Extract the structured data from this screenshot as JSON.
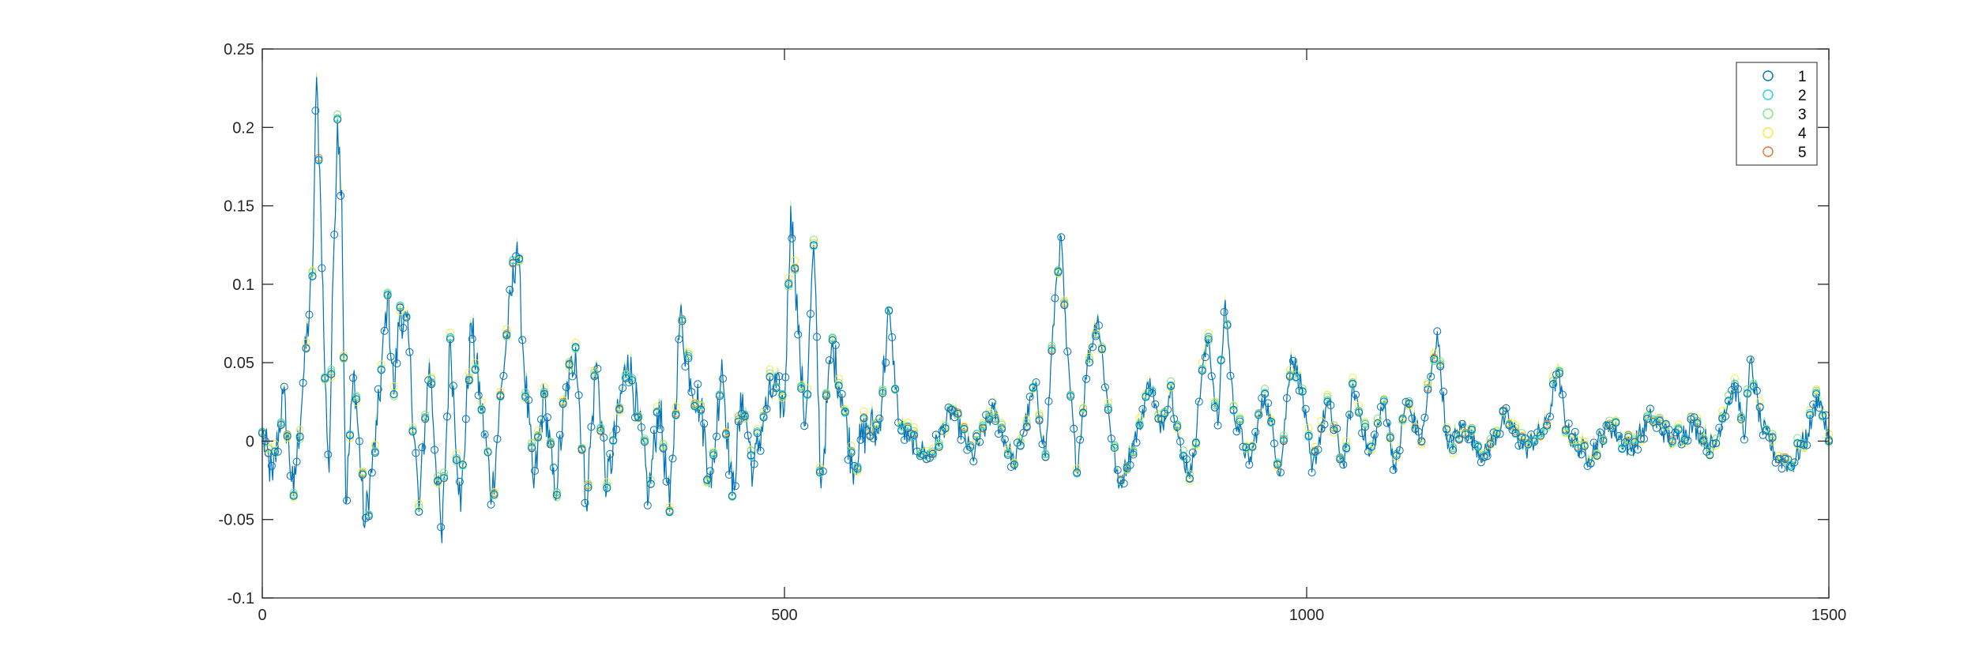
{
  "chart_data": {
    "type": "line",
    "title": "",
    "xlabel": "",
    "ylabel": "",
    "xlim": [
      0,
      1500
    ],
    "ylim": [
      -0.1,
      0.25
    ],
    "x_ticks": [
      0,
      500,
      1000,
      1500
    ],
    "x_tick_labels": [
      "0",
      "500",
      "1000",
      "1500"
    ],
    "y_ticks": [
      -0.1,
      -0.05,
      0,
      0.05,
      0.1,
      0.15,
      0.2,
      0.25
    ],
    "y_tick_labels": [
      "-0.1",
      "-0.05",
      "0",
      "0.05",
      "0.1",
      "0.15",
      "0.2",
      "0.25"
    ],
    "grid": false,
    "legend_position": "top-right",
    "marker": "circle",
    "series": [
      {
        "name": "1",
        "color": "#0072BD"
      },
      {
        "name": "2",
        "color": "#1FD3E0"
      },
      {
        "name": "3",
        "color": "#7CE87A"
      },
      {
        "name": "4",
        "color": "#F2EC3A"
      },
      {
        "name": "5",
        "color": "#E8742D"
      }
    ],
    "peaks": [
      [
        0,
        0.005
      ],
      [
        10,
        -0.025
      ],
      [
        20,
        0.03
      ],
      [
        30,
        -0.035
      ],
      [
        40,
        0.045
      ],
      [
        48,
        0.105
      ],
      [
        52,
        0.232
      ],
      [
        56,
        0.15
      ],
      [
        60,
        0.04
      ],
      [
        64,
        -0.02
      ],
      [
        68,
        0.11
      ],
      [
        72,
        0.205
      ],
      [
        76,
        0.16
      ],
      [
        80,
        -0.04
      ],
      [
        88,
        0.045
      ],
      [
        98,
        -0.055
      ],
      [
        110,
        0.01
      ],
      [
        120,
        0.093
      ],
      [
        126,
        0.03
      ],
      [
        132,
        0.085
      ],
      [
        140,
        0.065
      ],
      [
        150,
        -0.045
      ],
      [
        160,
        0.05
      ],
      [
        172,
        -0.065
      ],
      [
        180,
        0.065
      ],
      [
        190,
        -0.045
      ],
      [
        200,
        0.075
      ],
      [
        210,
        0.02
      ],
      [
        220,
        -0.035
      ],
      [
        230,
        0.04
      ],
      [
        244,
        0.127
      ],
      [
        250,
        0.055
      ],
      [
        260,
        -0.03
      ],
      [
        270,
        0.03
      ],
      [
        280,
        -0.035
      ],
      [
        290,
        0.025
      ],
      [
        300,
        0.06
      ],
      [
        310,
        -0.04
      ],
      [
        320,
        0.05
      ],
      [
        330,
        -0.03
      ],
      [
        350,
        0.055
      ],
      [
        360,
        0.015
      ],
      [
        370,
        -0.035
      ],
      [
        380,
        0.025
      ],
      [
        390,
        -0.045
      ],
      [
        400,
        0.08
      ],
      [
        410,
        0.04
      ],
      [
        420,
        0.02
      ],
      [
        430,
        -0.03
      ],
      [
        440,
        0.052
      ],
      [
        450,
        -0.035
      ],
      [
        460,
        0.03
      ],
      [
        470,
        -0.02
      ],
      [
        480,
        0.015
      ],
      [
        490,
        0.035
      ],
      [
        500,
        0.02
      ],
      [
        506,
        0.15
      ],
      [
        510,
        0.11
      ],
      [
        515,
        0.05
      ],
      [
        520,
        0.01
      ],
      [
        528,
        0.125
      ],
      [
        535,
        -0.03
      ],
      [
        545,
        0.06
      ],
      [
        555,
        0.03
      ],
      [
        565,
        -0.015
      ],
      [
        580,
        0.01
      ],
      [
        590,
        0.005
      ],
      [
        600,
        0.083
      ],
      [
        610,
        0.01
      ],
      [
        620,
        0.0
      ],
      [
        640,
        -0.01
      ],
      [
        660,
        0.02
      ],
      [
        680,
        -0.01
      ],
      [
        700,
        0.02
      ],
      [
        720,
        -0.015
      ],
      [
        740,
        0.035
      ],
      [
        750,
        -0.01
      ],
      [
        760,
        0.1
      ],
      [
        765,
        0.13
      ],
      [
        770,
        0.06
      ],
      [
        780,
        -0.02
      ],
      [
        790,
        0.05
      ],
      [
        800,
        0.08
      ],
      [
        810,
        0.02
      ],
      [
        820,
        -0.03
      ],
      [
        840,
        0.01
      ],
      [
        850,
        0.04
      ],
      [
        860,
        0.005
      ],
      [
        870,
        0.035
      ],
      [
        880,
        -0.01
      ],
      [
        890,
        -0.02
      ],
      [
        900,
        0.045
      ],
      [
        906,
        0.065
      ],
      [
        915,
        0.01
      ],
      [
        922,
        0.09
      ],
      [
        930,
        0.02
      ],
      [
        945,
        -0.015
      ],
      [
        960,
        0.03
      ],
      [
        975,
        -0.02
      ],
      [
        985,
        0.055
      ],
      [
        995,
        0.035
      ],
      [
        1005,
        -0.02
      ],
      [
        1020,
        0.025
      ],
      [
        1035,
        -0.015
      ],
      [
        1045,
        0.035
      ],
      [
        1060,
        -0.01
      ],
      [
        1075,
        0.025
      ],
      [
        1085,
        -0.02
      ],
      [
        1095,
        0.025
      ],
      [
        1110,
        0.0
      ],
      [
        1125,
        0.07
      ],
      [
        1135,
        -0.005
      ],
      [
        1150,
        0.01
      ],
      [
        1170,
        -0.01
      ],
      [
        1190,
        0.015
      ],
      [
        1210,
        -0.005
      ],
      [
        1230,
        0.01
      ],
      [
        1240,
        0.045
      ],
      [
        1250,
        0.005
      ],
      [
        1270,
        -0.01
      ],
      [
        1290,
        0.01
      ],
      [
        1310,
        -0.005
      ],
      [
        1330,
        0.015
      ],
      [
        1350,
        0.0
      ],
      [
        1370,
        0.01
      ],
      [
        1390,
        -0.005
      ],
      [
        1400,
        0.02
      ],
      [
        1410,
        0.035
      ],
      [
        1420,
        0.005
      ],
      [
        1425,
        0.052
      ],
      [
        1435,
        0.01
      ],
      [
        1450,
        -0.01
      ],
      [
        1465,
        -0.015
      ],
      [
        1480,
        0.005
      ],
      [
        1490,
        0.03
      ],
      [
        1500,
        0.0
      ]
    ]
  }
}
